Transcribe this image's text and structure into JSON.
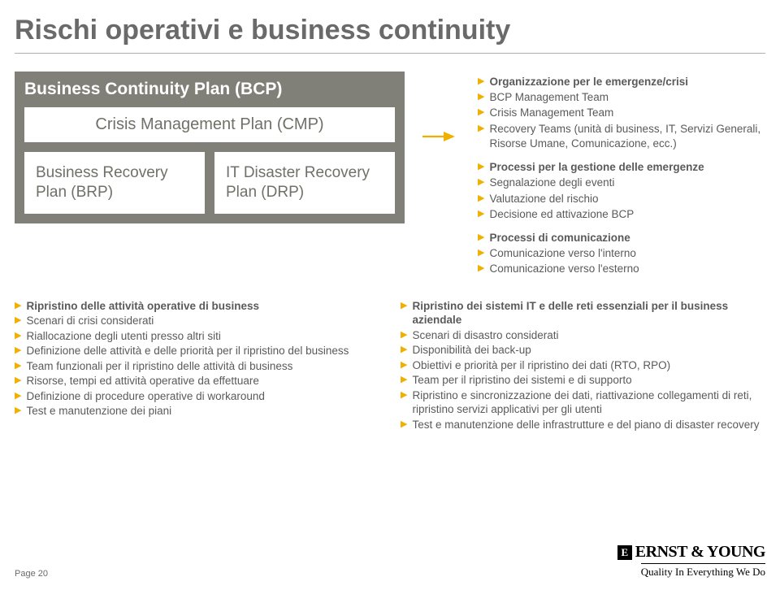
{
  "title": "Rischi operativi e business continuity",
  "diagram": {
    "bcp_title": "Business Continuity Plan (BCP)",
    "cmp_title": "Crisis Management Plan (CMP)",
    "brp_title": "Business Recovery Plan (BRP)",
    "drp_title": "IT Disaster Recovery Plan (DRP)",
    "colors": {
      "outer_bg": "#808078",
      "inner_bg": "#ffffff",
      "outer_text": "#ffffff",
      "inner_text": "#707068"
    }
  },
  "arrow_color": "#f0b000",
  "side_groups": [
    {
      "items": [
        {
          "text": "Organizzazione per le emergenze/crisi",
          "bold": true
        },
        {
          "text": "BCP Management Team"
        },
        {
          "text": "Crisis Management Team"
        },
        {
          "text": "Recovery Teams (unità di business, IT, Servizi Generali, Risorse Umane, Comunicazione, ecc.)"
        }
      ]
    },
    {
      "items": [
        {
          "text": "Processi per la gestione delle emergenze",
          "bold": true
        },
        {
          "text": "Segnalazione degli eventi"
        },
        {
          "text": "Valutazione del rischio"
        },
        {
          "text": "Decisione ed attivazione BCP"
        }
      ]
    },
    {
      "items": [
        {
          "text": "Processi di comunicazione",
          "bold": true
        },
        {
          "text": "Comunicazione verso l'interno"
        },
        {
          "text": "Comunicazione verso l'esterno"
        }
      ]
    }
  ],
  "bottom_left": [
    {
      "text": "Ripristino delle attività operative di business",
      "bold": true
    },
    {
      "text": "Scenari di crisi considerati"
    },
    {
      "text": "Riallocazione degli utenti presso altri siti"
    },
    {
      "text": "Definizione delle attività e delle priorità per il ripristino del business"
    },
    {
      "text": "Team funzionali per il ripristino delle attività di business"
    },
    {
      "text": "Risorse, tempi ed attività operative da effettuare"
    },
    {
      "text": "Definizione di procedure operative di workaround"
    },
    {
      "text": "Test e manutenzione dei piani"
    }
  ],
  "bottom_right": [
    {
      "text": "Ripristino dei sistemi IT e delle reti essenziali per il business aziendale",
      "bold": true
    },
    {
      "text": "Scenari di disastro considerati"
    },
    {
      "text": "Disponibilità dei back-up"
    },
    {
      "text": "Obiettivi e priorità per il ripristino dei dati (RTO, RPO)"
    },
    {
      "text": "Team per il ripristino dei sistemi e di supporto"
    },
    {
      "text": "Ripristino e sincronizzazione dei dati, riattivazione collegamenti di reti, ripristino servizi applicativi per gli utenti"
    },
    {
      "text": "Test e manutenzione delle infrastrutture e del piano di disaster recovery"
    }
  ],
  "footer": {
    "page": "Page 20",
    "logo_name": "ERNST & YOUNG",
    "logo_letter": "E",
    "tagline": "Quality In Everything We Do"
  }
}
